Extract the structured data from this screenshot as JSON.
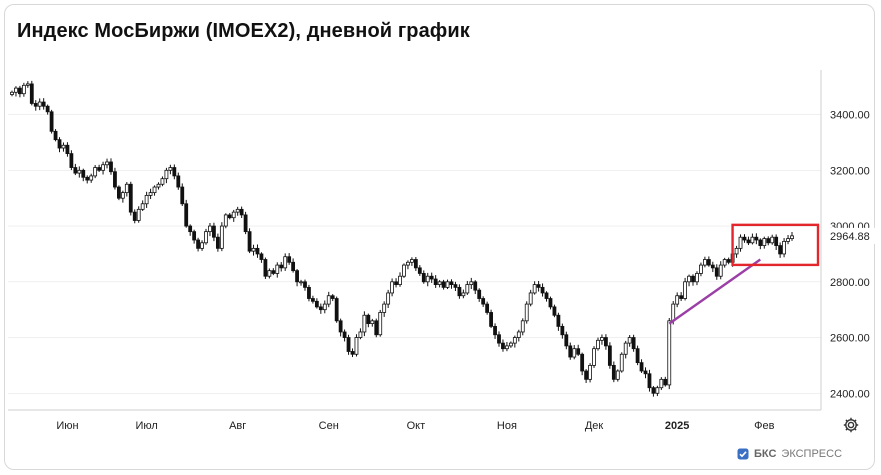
{
  "title": "Индекс МосБиржи (IMOEX2), дневной график",
  "brand": {
    "logo_icon": "bks-logo-icon",
    "name_bold": "БКС",
    "name_rest": "ЭКСПРЕСС"
  },
  "settings_icon": "gear-icon",
  "colors": {
    "candle": "#111111",
    "trend_line": "#9b3fa6",
    "highlight_box": "#e3252c",
    "grid": "#e6e6e6"
  },
  "chart_data": {
    "type": "candlestick",
    "title": "Индекс МосБиржи (IMOEX2), дневной график",
    "ylim": [
      2340,
      3560
    ],
    "y_ticks": [
      2400,
      2600,
      2800,
      3000,
      3200,
      3400
    ],
    "y_tick_labels": [
      "2400.00",
      "2600.00",
      "2800.00",
      "3000.00",
      "3200.00",
      "3400.00"
    ],
    "x_labels": [
      "Июн",
      "Июл",
      "Авг",
      "Сен",
      "Окт",
      "Ноя",
      "Дек",
      "2025",
      "Фев"
    ],
    "last_price_label": "2964.88",
    "last_price": 2964.88,
    "annotations": {
      "trend_line": {
        "from": {
          "index": 166,
          "value": 2650
        },
        "to": {
          "index": 189,
          "value": 2880
        }
      },
      "highlight_box": {
        "index_from": 183,
        "index_to": 199,
        "value_low": 2875,
        "value_high": 2990
      }
    },
    "closes": [
      3480,
      3495,
      3475,
      3505,
      3510,
      3440,
      3430,
      3445,
      3430,
      3410,
      3340,
      3310,
      3280,
      3290,
      3260,
      3210,
      3190,
      3200,
      3175,
      3165,
      3180,
      3210,
      3200,
      3220,
      3230,
      3195,
      3140,
      3100,
      3120,
      3150,
      3050,
      3020,
      3060,
      3080,
      3110,
      3120,
      3140,
      3150,
      3170,
      3200,
      3210,
      3180,
      3140,
      3080,
      3000,
      2980,
      2950,
      2920,
      2940,
      2980,
      3000,
      2960,
      2920,
      3000,
      3040,
      3030,
      3050,
      3060,
      3040,
      2980,
      2910,
      2920,
      2900,
      2880,
      2820,
      2840,
      2830,
      2860,
      2850,
      2890,
      2870,
      2840,
      2800,
      2800,
      2780,
      2740,
      2730,
      2710,
      2700,
      2720,
      2750,
      2740,
      2660,
      2620,
      2600,
      2550,
      2540,
      2600,
      2620,
      2680,
      2650,
      2660,
      2610,
      2690,
      2720,
      2760,
      2800,
      2790,
      2820,
      2860,
      2870,
      2880,
      2850,
      2830,
      2800,
      2820,
      2810,
      2790,
      2800,
      2780,
      2800,
      2790,
      2780,
      2750,
      2760,
      2790,
      2800,
      2770,
      2740,
      2720,
      2690,
      2640,
      2610,
      2580,
      2560,
      2570,
      2580,
      2600,
      2620,
      2660,
      2720,
      2760,
      2790,
      2780,
      2760,
      2740,
      2710,
      2680,
      2640,
      2610,
      2570,
      2530,
      2560,
      2540,
      2480,
      2450,
      2500,
      2560,
      2590,
      2600,
      2570,
      2500,
      2450,
      2480,
      2540,
      2580,
      2600,
      2560,
      2510,
      2480,
      2470,
      2420,
      2400,
      2420,
      2450,
      2430,
      2660,
      2720,
      2750,
      2740,
      2800,
      2820,
      2800,
      2830,
      2860,
      2880,
      2860,
      2850,
      2820,
      2860,
      2880,
      2870,
      2900,
      2920,
      2960,
      2950,
      2940,
      2960,
      2950,
      2930,
      2955,
      2940,
      2960,
      2930,
      2900,
      2945,
      2955,
      2964.88
    ]
  }
}
